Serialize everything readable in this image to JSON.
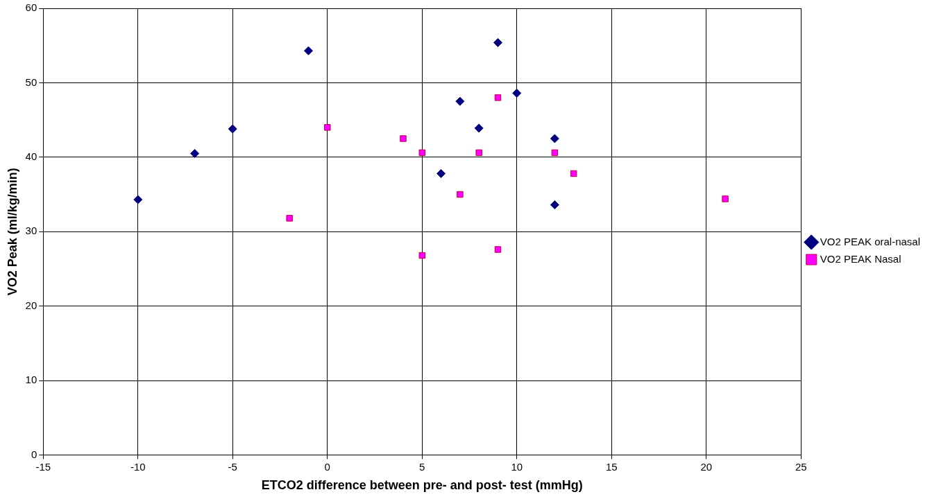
{
  "chart_data": {
    "type": "scatter",
    "xlabel": "ETCO2 difference between pre- and post- test (mmHg)",
    "ylabel": "VO2 Peak (ml/kg/min)",
    "xlim": [
      -15,
      25
    ],
    "xticks": [
      -15,
      -10,
      -5,
      0,
      5,
      10,
      15,
      20,
      25
    ],
    "ylim": [
      0,
      60
    ],
    "yticks": [
      0,
      10,
      20,
      30,
      40,
      50,
      60
    ],
    "grid": true,
    "legend": "right",
    "series": [
      {
        "name": "VO2 PEAK oral-nasal",
        "color": "#000080",
        "marker": "diamond",
        "x": [
          -10,
          -7,
          -5,
          -1,
          6,
          7,
          8,
          9,
          10,
          12,
          12
        ],
        "values": [
          34.3,
          40.5,
          43.8,
          54.3,
          37.8,
          47.5,
          43.9,
          55.4,
          48.6,
          42.5,
          33.6
        ]
      },
      {
        "name": "VO2 PEAK Nasal",
        "color": "#ff00ff",
        "marker": "square",
        "x": [
          -2,
          0,
          4,
          5,
          5,
          7,
          8,
          9,
          9,
          12,
          13,
          21
        ],
        "values": [
          31.8,
          44.0,
          42.5,
          40.6,
          26.8,
          35.0,
          40.6,
          48.0,
          27.6,
          40.6,
          37.8,
          34.4
        ]
      }
    ]
  }
}
